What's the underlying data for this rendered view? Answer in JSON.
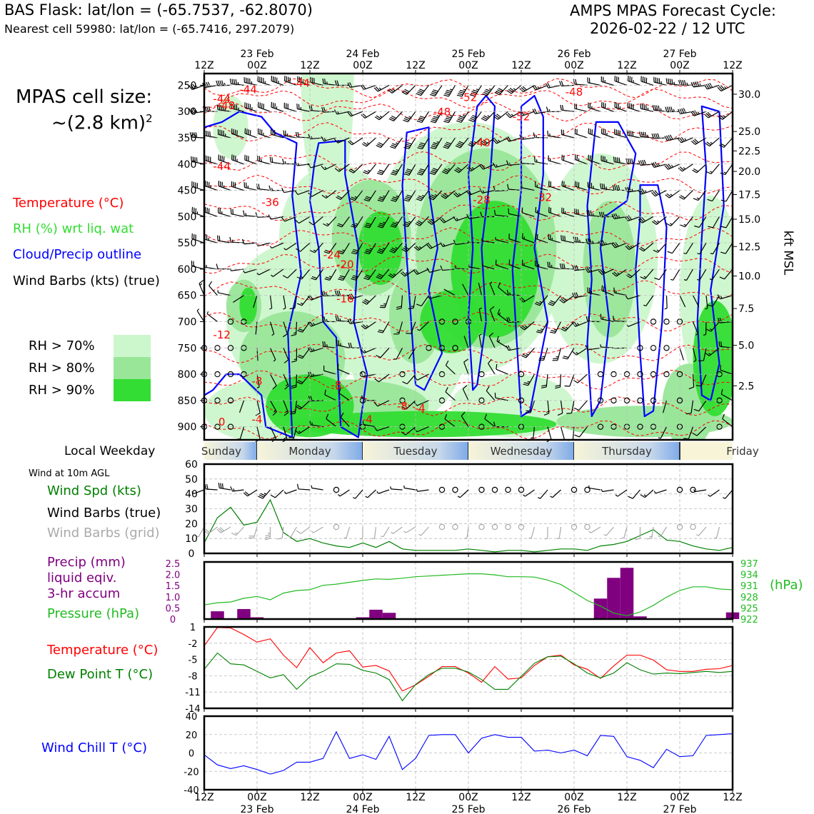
{
  "header": {
    "left_line1": "BAS Flask: lat/lon = (-65.7537, -62.8070)",
    "left_line2": "Nearest cell 59980: lat/lon = (-65.7416, 297.2079)",
    "right_line1": "AMPS MPAS Forecast Cycle:",
    "right_line2": "2026-02-22 / 12 UTC"
  },
  "sidebar": {
    "cell_size_label": "MPAS cell size:",
    "cell_size_value": "~(2.8 km)",
    "cell_size_exp": "2",
    "legend_temperature": "Temperature (°C)",
    "legend_rh": "RH (%) wrt liq. wat",
    "legend_cloud": "Cloud/Precip outline",
    "legend_wind": "Wind Barbs (kts) (true)",
    "rh_levels": [
      "RH > 70%",
      "RH > 80%",
      "RH > 90%"
    ],
    "local_weekday": "Local Weekday",
    "wind_10m": "Wind at 10m AGL",
    "wind_spd": "Wind Spd (kts)",
    "wind_barbs_true": "Wind Barbs (true)",
    "wind_barbs_grid": "Wind Barbs (grid)",
    "precip_l1": "Precip (mm)",
    "precip_l2": "liquid eqiv.",
    "precip_l3": "3-hr accum",
    "pressure": "Pressure (hPa)",
    "temperature": "Temperature (°C)",
    "dewpoint": "Dew Point T (°C)",
    "windchill": "Wind Chill T (°C)",
    "hpa_unit": "(hPa)",
    "kft_label": "kft MSL"
  },
  "colors": {
    "temp": "#ff0000",
    "rh": "#22cc22",
    "cloud": "#0000ff",
    "precip": "#800080",
    "pressure": "#22bb22",
    "dewpoint": "#008000",
    "windchill": "#0000ff",
    "grid_barb": "#aaaaaa",
    "rh70": "#ccf7cc",
    "rh80": "#99e699",
    "rh90": "#33dd33",
    "weekday_band": "#8ab4ea"
  },
  "chart_data": [
    {
      "type": "heatmap",
      "title": "",
      "ylabel": "Pressure (hPa)",
      "y2label": "kft MSL",
      "x_ticks_top": [
        "12Z",
        "00Z",
        "12Z",
        "00Z",
        "12Z",
        "00Z",
        "12Z",
        "00Z",
        "12Z",
        "00Z",
        "12Z"
      ],
      "x_dates_top": [
        "23 Feb",
        "24 Feb",
        "25 Feb",
        "26 Feb",
        "27 Feb"
      ],
      "pressure_ticks": [
        250,
        300,
        350,
        400,
        450,
        500,
        550,
        600,
        650,
        700,
        750,
        800,
        850,
        900
      ],
      "kft_ticks": [
        "30.0",
        "25.0",
        "22.5",
        "20.0",
        "17.5",
        "15.0",
        "12.5",
        "10.0",
        "7.5",
        "5.0",
        "2.5"
      ],
      "kft_tick_pressure": [
        267,
        338,
        375,
        414,
        458,
        505,
        557,
        613,
        675,
        745,
        822,
        905
      ],
      "temperature_contour_labels": [
        {
          "t": 10,
          "p": 265,
          "label": "-44"
        },
        {
          "t": 22,
          "p": 253,
          "label": "-44"
        },
        {
          "t": 4,
          "p": 283,
          "label": "-44"
        },
        {
          "t": 5,
          "p": 296,
          "label": "-48"
        },
        {
          "t": 60,
          "p": 280,
          "label": "-52"
        },
        {
          "t": 84,
          "p": 270,
          "label": "-48"
        },
        {
          "t": 54,
          "p": 308,
          "label": "-48"
        },
        {
          "t": 72,
          "p": 317,
          "label": "-52"
        },
        {
          "t": 63,
          "p": 366,
          "label": "-40"
        },
        {
          "t": 4,
          "p": 411,
          "label": "-44"
        },
        {
          "t": 15,
          "p": 480,
          "label": "-36"
        },
        {
          "t": 63,
          "p": 475,
          "label": "-28"
        },
        {
          "t": 77,
          "p": 470,
          "label": "-32"
        },
        {
          "t": 29,
          "p": 580,
          "label": "-24"
        },
        {
          "t": 32,
          "p": 598,
          "label": "-20"
        },
        {
          "t": 32,
          "p": 663,
          "label": "-16"
        },
        {
          "t": 4,
          "p": 732,
          "label": "-12"
        },
        {
          "t": 12,
          "p": 820,
          "label": "-8"
        },
        {
          "t": 30,
          "p": 828,
          "label": "-8"
        },
        {
          "t": 45,
          "p": 868,
          "label": "-8"
        },
        {
          "t": 12,
          "p": 893,
          "label": "-4"
        },
        {
          "t": 37,
          "p": 893,
          "label": "-4"
        },
        {
          "t": 49,
          "p": 872,
          "label": "-4"
        },
        {
          "t": 4,
          "p": 898,
          "label": "0"
        }
      ],
      "rh_legend": [
        "RH > 70%",
        "RH > 80%",
        "RH > 90%"
      ]
    },
    {
      "type": "bar",
      "weekday_band": [
        "Sunday",
        "Monday",
        "Tuesday",
        "Wednesday",
        "Thursday",
        "Friday"
      ],
      "weekday_start_hours": [
        0,
        12,
        36,
        60,
        84,
        108
      ]
    },
    {
      "type": "line",
      "title": "",
      "x_hours": [
        0,
        3,
        6,
        9,
        12,
        15,
        18,
        21,
        24,
        27,
        30,
        33,
        36,
        39,
        42,
        45,
        48,
        51,
        54,
        57,
        60,
        63,
        66,
        69,
        72,
        75,
        78,
        81,
        84,
        87,
        90,
        93,
        96,
        99,
        102,
        105,
        108,
        111,
        114,
        117,
        120
      ],
      "ylim": [
        0,
        60
      ],
      "y_ticks": [
        0,
        10,
        20,
        30,
        40,
        50,
        60
      ],
      "series": [
        {
          "name": "Wind Spd (kts)",
          "values": [
            7,
            24,
            31,
            19,
            21,
            36,
            14,
            8,
            10,
            7,
            5,
            4,
            7,
            4,
            8,
            3,
            2,
            2,
            2,
            2,
            3,
            2,
            1,
            2,
            2,
            1,
            2,
            3,
            3,
            2,
            5,
            6,
            8,
            12,
            16,
            9,
            8,
            5,
            3,
            2,
            4
          ]
        }
      ],
      "calm_hours_true": [
        30,
        54,
        57,
        63,
        66,
        69,
        72,
        84,
        87,
        108,
        111
      ],
      "calm_hours_grid": [
        30,
        54,
        57,
        63,
        66,
        69,
        72,
        84,
        87,
        108,
        111
      ]
    },
    {
      "type": "bar",
      "title": "",
      "x_hours": [
        0,
        3,
        6,
        9,
        12,
        15,
        18,
        21,
        24,
        27,
        30,
        33,
        36,
        39,
        42,
        45,
        48,
        51,
        54,
        57,
        60,
        63,
        66,
        69,
        72,
        75,
        78,
        81,
        84,
        87,
        90,
        93,
        96,
        99,
        102,
        105,
        108,
        111,
        114,
        117,
        120
      ],
      "ylim": [
        0,
        2.5
      ],
      "y_ticks": [
        "0",
        "0.5",
        "1.0",
        "1.5",
        "2.0",
        "2.5"
      ],
      "y2lim": [
        922,
        937
      ],
      "y2_ticks": [
        922,
        925,
        928,
        931,
        934,
        937
      ],
      "series": [
        {
          "name": "Precip (mm)",
          "values": [
            0,
            0.35,
            0,
            0.45,
            0.08,
            0,
            0,
            0,
            0,
            0,
            0,
            0,
            0.08,
            0.42,
            0.28,
            0,
            0,
            0,
            0,
            0,
            0,
            0,
            0,
            0,
            0,
            0,
            0,
            0,
            0,
            0,
            0.92,
            1.85,
            2.3,
            0.12,
            0,
            0,
            0,
            0,
            0,
            0,
            0.3
          ]
        },
        {
          "name": "Pressure (hPa)",
          "values": [
            925.8,
            926.4,
            926.6,
            927.6,
            928.1,
            927.2,
            929.0,
            929.7,
            929.9,
            931.1,
            931.4,
            931.9,
            932.4,
            932.8,
            932.7,
            933.0,
            933.4,
            933.6,
            933.8,
            934.0,
            934.2,
            934.2,
            933.9,
            933.4,
            933.4,
            933.3,
            932.5,
            931.3,
            929.2,
            927.0,
            925.5,
            923.6,
            922.9,
            923.9,
            925.7,
            927.9,
            929.7,
            930.7,
            930.7,
            930.1,
            929.9
          ]
        }
      ]
    },
    {
      "type": "line",
      "title": "",
      "x_hours": [
        0,
        3,
        6,
        9,
        12,
        15,
        18,
        21,
        24,
        27,
        30,
        33,
        36,
        39,
        42,
        45,
        48,
        51,
        54,
        57,
        60,
        63,
        66,
        69,
        72,
        75,
        78,
        81,
        84,
        87,
        90,
        93,
        96,
        99,
        102,
        105,
        108,
        111,
        114,
        117,
        120
      ],
      "ylim": [
        -14,
        1
      ],
      "y_ticks": [
        1,
        -2,
        -5,
        -8,
        -11,
        -14
      ],
      "series": [
        {
          "name": "Temperature (°C)",
          "values": [
            -2.5,
            0.9,
            0.8,
            -0.4,
            -1.8,
            -1.2,
            -4.2,
            -6.5,
            -2.8,
            -5.6,
            -3.8,
            -3.4,
            -6.4,
            -6.1,
            -7.1,
            -10.8,
            -9.7,
            -8.1,
            -6.3,
            -6.3,
            -7.5,
            -9.2,
            -6.3,
            -8.6,
            -8.4,
            -6.1,
            -4.5,
            -4.2,
            -6.0,
            -6.8,
            -8.5,
            -6.2,
            -4.2,
            -4.2,
            -5.1,
            -6.9,
            -7.2,
            -7.2,
            -6.8,
            -6.7,
            -6.1
          ]
        },
        {
          "name": "Dew Point T (°C)",
          "values": [
            -6.8,
            -3.8,
            -5.8,
            -6.0,
            -7.2,
            -8.4,
            -7.8,
            -10.5,
            -8.2,
            -7.2,
            -5.8,
            -5.9,
            -7.0,
            -7.5,
            -8.7,
            -12.6,
            -9.6,
            -7.8,
            -6.6,
            -6.6,
            -7.3,
            -8.7,
            -10.5,
            -10.5,
            -8.1,
            -5.7,
            -4.5,
            -4.4,
            -5.8,
            -7.5,
            -8.4,
            -7.5,
            -5.6,
            -6.9,
            -7.7,
            -7.5,
            -7.6,
            -7.4,
            -7.2,
            -7.4,
            -7.2
          ]
        }
      ]
    },
    {
      "type": "line",
      "title": "",
      "x_hours": [
        0,
        3,
        6,
        9,
        12,
        15,
        18,
        21,
        24,
        27,
        30,
        33,
        36,
        39,
        42,
        45,
        48,
        51,
        54,
        57,
        60,
        63,
        66,
        69,
        72,
        75,
        78,
        81,
        84,
        87,
        90,
        93,
        96,
        99,
        102,
        105,
        108,
        111,
        114,
        117,
        120
      ],
      "ylim": [
        -40,
        40
      ],
      "y_ticks": [
        40,
        20,
        0,
        -20,
        -40
      ],
      "x_ticks_bottom": [
        "12Z",
        "00Z",
        "12Z",
        "00Z",
        "12Z",
        "00Z",
        "12Z",
        "00Z",
        "12Z",
        "00Z",
        "12Z"
      ],
      "x_dates_bottom": [
        "23 Feb",
        "24 Feb",
        "25 Feb",
        "26 Feb",
        "27 Feb"
      ],
      "series": [
        {
          "name": "Wind Chill T (°C)",
          "values": [
            -2,
            -13,
            -17,
            -14,
            -18,
            -23,
            -19,
            -10,
            -10,
            -6,
            23,
            -6,
            -2,
            -7,
            18,
            -18,
            -6,
            19,
            20,
            20,
            0,
            16,
            20,
            17,
            17,
            2,
            3,
            0,
            3,
            -3,
            19,
            18,
            -4,
            -8,
            -16,
            4,
            -4,
            -3,
            19,
            20,
            21
          ]
        }
      ]
    }
  ]
}
